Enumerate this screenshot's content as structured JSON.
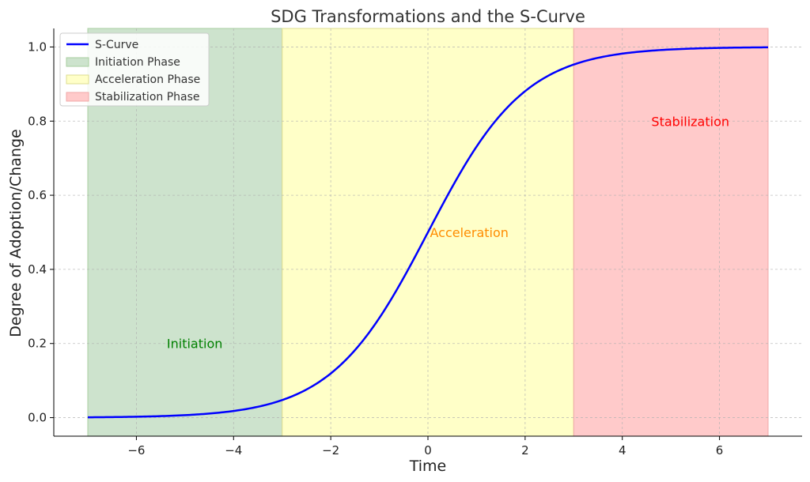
{
  "chart_data": {
    "type": "line",
    "title": "SDG Transformations and the S-Curve",
    "xlabel": "Time",
    "ylabel": "Degree of Adoption/Change",
    "xlim": [
      -7.7,
      7.7
    ],
    "ylim": [
      -0.05,
      1.05
    ],
    "x_ticks": [
      -6,
      -4,
      -2,
      0,
      2,
      4,
      6
    ],
    "x_tick_labels": [
      "−6",
      "−4",
      "−2",
      "0",
      "2",
      "4",
      "6"
    ],
    "y_ticks": [
      0.0,
      0.2,
      0.4,
      0.6,
      0.8,
      1.0
    ],
    "y_tick_labels": [
      "0.0",
      "0.2",
      "0.4",
      "0.6",
      "0.8",
      "1.0"
    ],
    "grid": true,
    "legend_position": "top-left",
    "series": [
      {
        "name": "S-Curve",
        "color": "#0000ff",
        "x": [
          -7,
          -6.5,
          -6,
          -5.5,
          -5,
          -4.5,
          -4,
          -3.5,
          -3,
          -2.5,
          -2,
          -1.5,
          -1,
          -0.5,
          0,
          0.5,
          1,
          1.5,
          2,
          2.5,
          3,
          3.5,
          4,
          4.5,
          5,
          5.5,
          6,
          6.5,
          7
        ],
        "y": [
          0.001,
          0.0015,
          0.0025,
          0.004,
          0.0067,
          0.011,
          0.018,
          0.029,
          0.047,
          0.076,
          0.119,
          0.182,
          0.269,
          0.378,
          0.5,
          0.622,
          0.731,
          0.818,
          0.881,
          0.924,
          0.953,
          0.971,
          0.982,
          0.989,
          0.993,
          0.996,
          0.998,
          0.998,
          0.999
        ]
      }
    ],
    "regions": [
      {
        "name": "Initiation Phase",
        "x_start": -7,
        "x_end": -3,
        "color": "#cde3cd",
        "edge": "#a9cfa0",
        "label": "Initiation",
        "label_x": -4.8,
        "label_y": 0.2,
        "label_color": "#008000"
      },
      {
        "name": "Acceleration Phase",
        "x_start": -3,
        "x_end": 3,
        "color": "#ffffc8",
        "edge": "#dede90",
        "label": "Acceleration",
        "label_x": 0.85,
        "label_y": 0.5,
        "label_color": "#ff8c00"
      },
      {
        "name": "Stabilization Phase",
        "x_start": 3,
        "x_end": 7,
        "color": "#ffcaca",
        "edge": "#f0a8a8",
        "label": "Stabilization",
        "label_x": 5.4,
        "label_y": 0.8,
        "label_color": "#ff0000"
      }
    ]
  }
}
